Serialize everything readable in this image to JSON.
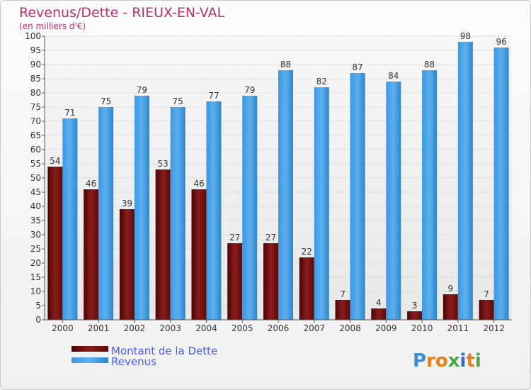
{
  "chart_data": {
    "type": "bar",
    "title": "Revenus/Dette - RIEUX-EN-VAL",
    "subtitle": "(en milliers d'€)",
    "categories": [
      "2000",
      "2001",
      "2002",
      "2003",
      "2004",
      "2005",
      "2006",
      "2007",
      "2008",
      "2009",
      "2010",
      "2011",
      "2012"
    ],
    "series": [
      {
        "name": "Montant de la Dette",
        "color": "#6b0f0f",
        "values": [
          54,
          46,
          39,
          53,
          46,
          27,
          27,
          22,
          7,
          4,
          3,
          9,
          7
        ]
      },
      {
        "name": "Revenus",
        "color": "#3f9be0",
        "values": [
          71,
          75,
          79,
          75,
          77,
          79,
          88,
          82,
          87,
          84,
          88,
          98,
          96
        ]
      }
    ],
    "ylim": [
      0,
      100
    ],
    "ytick_step": 5,
    "grid": true,
    "legend_position": "bottom-left"
  },
  "brand": {
    "letters": [
      "P",
      "r",
      "o",
      "x",
      "i",
      "t",
      "i"
    ],
    "colors": [
      "#3a8ed6",
      "#e6801c",
      "#e6801c",
      "#4aa84a",
      "#2a6fb8",
      "#e6801c",
      "#4aa84a"
    ]
  }
}
